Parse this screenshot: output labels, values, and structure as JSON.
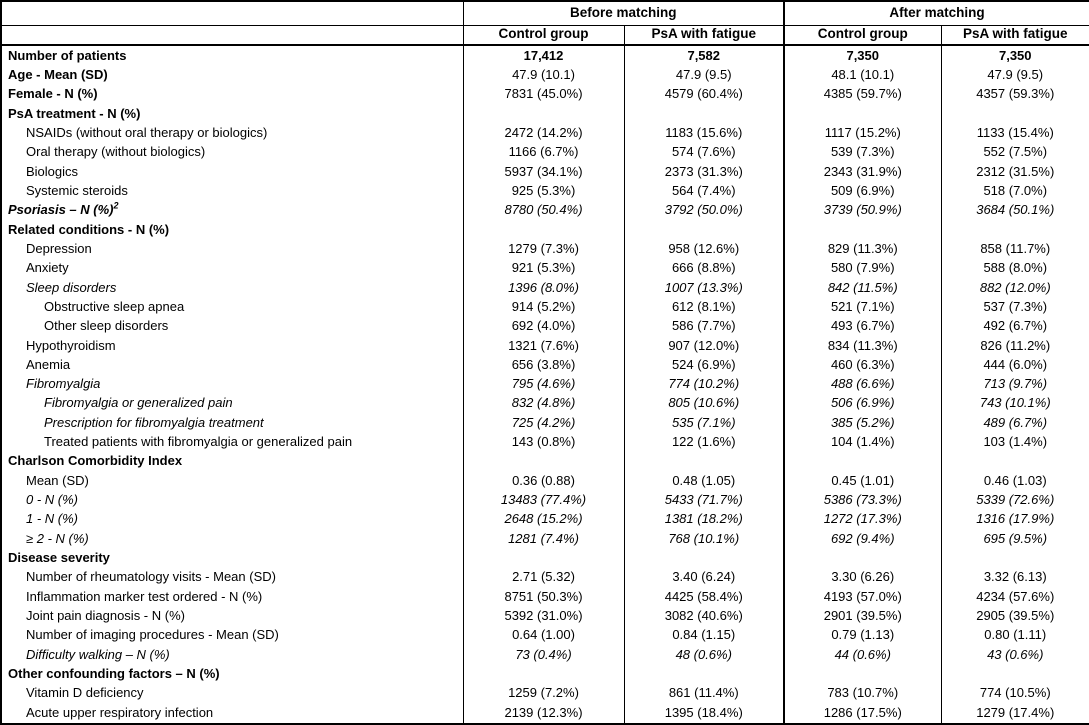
{
  "colors": {
    "background": "#ffffff",
    "text": "#000000",
    "border": "#000000"
  },
  "table": {
    "col_groups": [
      {
        "label": "Before matching"
      },
      {
        "label": "After matching"
      }
    ],
    "sub_headers": [
      "Control group",
      "PsA with fatigue",
      "Control group",
      "PsA with fatigue"
    ],
    "rows": [
      {
        "label": "Number of patients",
        "indent": 0,
        "bold": true,
        "italic": false,
        "vbold": true,
        "vitalic": false,
        "sup": "",
        "values": [
          "17,412",
          "7,582",
          "7,350",
          "7,350"
        ]
      },
      {
        "label": "Age - Mean (SD)",
        "indent": 0,
        "bold": true,
        "italic": false,
        "vbold": false,
        "vitalic": false,
        "sup": "",
        "values": [
          "47.9 (10.1)",
          "47.9 (9.5)",
          "48.1 (10.1)",
          "47.9 (9.5)"
        ]
      },
      {
        "label": "Female - N (%)",
        "indent": 0,
        "bold": true,
        "italic": false,
        "vbold": false,
        "vitalic": false,
        "sup": "",
        "values": [
          "7831 (45.0%)",
          "4579 (60.4%)",
          "4385 (59.7%)",
          "4357 (59.3%)"
        ]
      },
      {
        "label": "PsA treatment - N (%)",
        "indent": 0,
        "bold": true,
        "italic": false,
        "vbold": false,
        "vitalic": false,
        "sup": "",
        "values": []
      },
      {
        "label": "NSAIDs (without oral therapy or biologics)",
        "indent": 1,
        "bold": false,
        "italic": false,
        "vbold": false,
        "vitalic": false,
        "sup": "",
        "values": [
          "2472 (14.2%)",
          "1183 (15.6%)",
          "1117 (15.2%)",
          "1133 (15.4%)"
        ]
      },
      {
        "label": "Oral therapy (without biologics)",
        "indent": 1,
        "bold": false,
        "italic": false,
        "vbold": false,
        "vitalic": false,
        "sup": "",
        "values": [
          "1166 (6.7%)",
          "574 (7.6%)",
          "539 (7.3%)",
          "552 (7.5%)"
        ]
      },
      {
        "label": "Biologics",
        "indent": 1,
        "bold": false,
        "italic": false,
        "vbold": false,
        "vitalic": false,
        "sup": "",
        "values": [
          "5937 (34.1%)",
          "2373 (31.3%)",
          "2343 (31.9%)",
          "2312 (31.5%)"
        ]
      },
      {
        "label": "Systemic steroids",
        "indent": 1,
        "bold": false,
        "italic": false,
        "vbold": false,
        "vitalic": false,
        "sup": "",
        "values": [
          "925 (5.3%)",
          "564 (7.4%)",
          "509 (6.9%)",
          "518 (7.0%)"
        ]
      },
      {
        "label": "Psoriasis – N (%)",
        "indent": 0,
        "bold": true,
        "italic": true,
        "vbold": false,
        "vitalic": true,
        "sup": "2",
        "values": [
          "8780 (50.4%)",
          "3792 (50.0%)",
          "3739 (50.9%)",
          "3684 (50.1%)"
        ]
      },
      {
        "label": "Related conditions - N (%)",
        "indent": 0,
        "bold": true,
        "italic": false,
        "vbold": false,
        "vitalic": false,
        "sup": "",
        "values": []
      },
      {
        "label": "Depression",
        "indent": 1,
        "bold": false,
        "italic": false,
        "vbold": false,
        "vitalic": false,
        "sup": "",
        "values": [
          "1279 (7.3%)",
          "958 (12.6%)",
          "829 (11.3%)",
          "858 (11.7%)"
        ]
      },
      {
        "label": "Anxiety",
        "indent": 1,
        "bold": false,
        "italic": false,
        "vbold": false,
        "vitalic": false,
        "sup": "",
        "values": [
          "921 (5.3%)",
          "666 (8.8%)",
          "580 (7.9%)",
          "588 (8.0%)"
        ]
      },
      {
        "label": "Sleep disorders",
        "indent": 1,
        "bold": false,
        "italic": true,
        "vbold": false,
        "vitalic": true,
        "sup": "",
        "values": [
          "1396 (8.0%)",
          "1007 (13.3%)",
          "842 (11.5%)",
          "882 (12.0%)"
        ]
      },
      {
        "label": "Obstructive sleep apnea",
        "indent": 2,
        "bold": false,
        "italic": false,
        "vbold": false,
        "vitalic": false,
        "sup": "",
        "values": [
          "914 (5.2%)",
          "612 (8.1%)",
          "521 (7.1%)",
          "537 (7.3%)"
        ]
      },
      {
        "label": "Other sleep disorders",
        "indent": 2,
        "bold": false,
        "italic": false,
        "vbold": false,
        "vitalic": false,
        "sup": "",
        "values": [
          "692 (4.0%)",
          "586 (7.7%)",
          "493 (6.7%)",
          "492 (6.7%)"
        ]
      },
      {
        "label": "Hypothyroidism",
        "indent": 1,
        "bold": false,
        "italic": false,
        "vbold": false,
        "vitalic": false,
        "sup": "",
        "values": [
          "1321 (7.6%)",
          "907 (12.0%)",
          "834 (11.3%)",
          "826 (11.2%)"
        ]
      },
      {
        "label": "Anemia",
        "indent": 1,
        "bold": false,
        "italic": false,
        "vbold": false,
        "vitalic": false,
        "sup": "",
        "values": [
          "656 (3.8%)",
          "524 (6.9%)",
          "460 (6.3%)",
          "444 (6.0%)"
        ]
      },
      {
        "label": "Fibromyalgia",
        "indent": 1,
        "bold": false,
        "italic": true,
        "vbold": false,
        "vitalic": true,
        "sup": "",
        "values": [
          "795 (4.6%)",
          "774 (10.2%)",
          "488 (6.6%)",
          "713 (9.7%)"
        ]
      },
      {
        "label": "Fibromyalgia or generalized pain",
        "indent": 2,
        "bold": false,
        "italic": true,
        "vbold": false,
        "vitalic": true,
        "sup": "",
        "values": [
          "832 (4.8%)",
          "805 (10.6%)",
          "506 (6.9%)",
          "743 (10.1%)"
        ]
      },
      {
        "label": "Prescription for fibromyalgia treatment",
        "indent": 2,
        "bold": false,
        "italic": true,
        "vbold": false,
        "vitalic": true,
        "sup": "",
        "values": [
          "725 (4.2%)",
          "535 (7.1%)",
          "385 (5.2%)",
          "489 (6.7%)"
        ]
      },
      {
        "label": "Treated patients with fibromyalgia or generalized pain",
        "indent": 2,
        "bold": false,
        "italic": false,
        "vbold": false,
        "vitalic": false,
        "sup": "",
        "values": [
          "143 (0.8%)",
          "122 (1.6%)",
          "104 (1.4%)",
          "103 (1.4%)"
        ]
      },
      {
        "label": "Charlson Comorbidity Index",
        "indent": 0,
        "bold": true,
        "italic": false,
        "vbold": false,
        "vitalic": false,
        "sup": "",
        "values": []
      },
      {
        "label": "Mean (SD)",
        "indent": 1,
        "bold": false,
        "italic": false,
        "vbold": false,
        "vitalic": false,
        "sup": "",
        "values": [
          "0.36 (0.88)",
          "0.48 (1.05)",
          "0.45 (1.01)",
          "0.46 (1.03)"
        ]
      },
      {
        "label": "0 - N (%)",
        "indent": 1,
        "bold": false,
        "italic": true,
        "vbold": false,
        "vitalic": true,
        "sup": "",
        "values": [
          "13483 (77.4%)",
          "5433 (71.7%)",
          "5386 (73.3%)",
          "5339 (72.6%)"
        ]
      },
      {
        "label": "1 - N (%)",
        "indent": 1,
        "bold": false,
        "italic": true,
        "vbold": false,
        "vitalic": true,
        "sup": "",
        "values": [
          "2648 (15.2%)",
          "1381 (18.2%)",
          "1272 (17.3%)",
          "1316 (17.9%)"
        ]
      },
      {
        "label": "≥ 2 - N (%)",
        "indent": 1,
        "bold": false,
        "italic": true,
        "vbold": false,
        "vitalic": true,
        "sup": "",
        "values": [
          "1281 (7.4%)",
          "768 (10.1%)",
          "692 (9.4%)",
          "695 (9.5%)"
        ]
      },
      {
        "label": "Disease severity",
        "indent": 0,
        "bold": true,
        "italic": false,
        "vbold": false,
        "vitalic": false,
        "sup": "",
        "values": []
      },
      {
        "label": "Number of rheumatology visits - Mean (SD)",
        "indent": 1,
        "bold": false,
        "italic": false,
        "vbold": false,
        "vitalic": false,
        "sup": "",
        "values": [
          "2.71 (5.32)",
          "3.40 (6.24)",
          "3.30 (6.26)",
          "3.32 (6.13)"
        ]
      },
      {
        "label": "Inflammation marker test ordered - N (%)",
        "indent": 1,
        "bold": false,
        "italic": false,
        "vbold": false,
        "vitalic": false,
        "sup": "",
        "values": [
          "8751 (50.3%)",
          "4425 (58.4%)",
          "4193 (57.0%)",
          "4234 (57.6%)"
        ]
      },
      {
        "label": "Joint pain diagnosis - N (%)",
        "indent": 1,
        "bold": false,
        "italic": false,
        "vbold": false,
        "vitalic": false,
        "sup": "",
        "values": [
          "5392 (31.0%)",
          "3082 (40.6%)",
          "2901 (39.5%)",
          "2905 (39.5%)"
        ]
      },
      {
        "label": "Number of imaging procedures - Mean (SD)",
        "indent": 1,
        "bold": false,
        "italic": false,
        "vbold": false,
        "vitalic": false,
        "sup": "",
        "values": [
          "0.64 (1.00)",
          "0.84 (1.15)",
          "0.79 (1.13)",
          "0.80 (1.11)"
        ]
      },
      {
        "label": "Difficulty walking – N (%)",
        "indent": 1,
        "bold": false,
        "italic": true,
        "vbold": false,
        "vitalic": true,
        "sup": "",
        "values": [
          "73 (0.4%)",
          "48 (0.6%)",
          "44 (0.6%)",
          "43 (0.6%)"
        ]
      },
      {
        "label": "Other confounding factors – N (%)",
        "indent": 0,
        "bold": true,
        "italic": false,
        "vbold": false,
        "vitalic": false,
        "sup": "",
        "values": []
      },
      {
        "label": "Vitamin D deficiency",
        "indent": 1,
        "bold": false,
        "italic": false,
        "vbold": false,
        "vitalic": false,
        "sup": "",
        "values": [
          "1259 (7.2%)",
          "861 (11.4%)",
          "783 (10.7%)",
          "774 (10.5%)"
        ]
      },
      {
        "label": "Acute upper respiratory infection",
        "indent": 1,
        "bold": false,
        "italic": false,
        "vbold": false,
        "vitalic": false,
        "sup": "",
        "values": [
          "2139 (12.3%)",
          "1395 (18.4%)",
          "1286 (17.5%)",
          "1279 (17.4%)"
        ]
      }
    ]
  }
}
